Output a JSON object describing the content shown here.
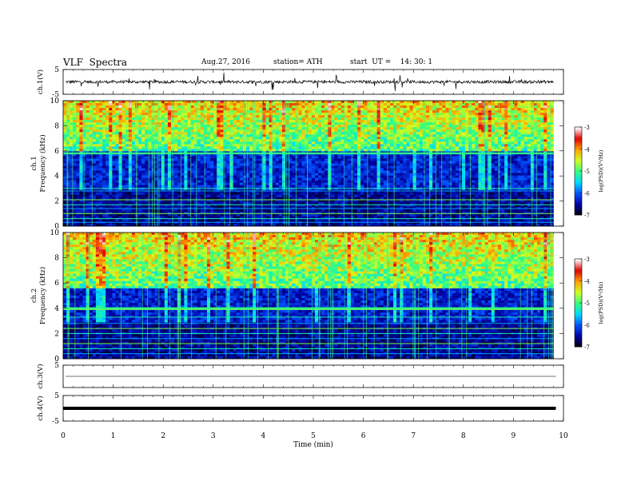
{
  "header": {
    "title": "VLF  Spectra",
    "date": "Aug.27, 2016",
    "station": "station= ATH",
    "start": "start  UT =    14: 30: 1"
  },
  "chart_data": [
    {
      "type": "line",
      "panel": "ch1-waveform",
      "ylabel": "ch.1(V)",
      "ylim": [
        -5,
        5
      ],
      "yticks": [
        5,
        -5
      ],
      "xlim": [
        0,
        10
      ],
      "baseline": 0,
      "noise_amplitude_approx": 1
    },
    {
      "type": "heatmap",
      "panel": "ch1-spectrogram",
      "ylabel_channel": "ch.1",
      "ylabel": "Frequency  (kHz)",
      "ylim": [
        0,
        10
      ],
      "yticks": [
        0,
        2,
        4,
        6,
        8,
        10
      ],
      "xlim": [
        0,
        10
      ],
      "data_end_min": 9.8,
      "colorbar": {
        "label": "log(PSD)(V²/Hz)",
        "range": [
          -7,
          -3
        ],
        "ticks": [
          -3,
          -4,
          -5,
          -6,
          -7
        ]
      },
      "features": {
        "strong_band_khz": 5.8,
        "low_power_band_khz": [
          2.8,
          5.6
        ],
        "high_power_band_khz": [
          6.0,
          10.0
        ],
        "narrowband_lines_khz": [
          0.3,
          0.6,
          1.0,
          1.4,
          1.7,
          2.1,
          2.8,
          3.0
        ]
      }
    },
    {
      "type": "heatmap",
      "panel": "ch2-spectrogram",
      "ylabel_channel": "ch.2",
      "ylabel": "Frequency  (kHz)",
      "ylim": [
        0,
        10
      ],
      "yticks": [
        0,
        2,
        4,
        6,
        8,
        10
      ],
      "xlim": [
        0,
        10
      ],
      "data_end_min": 9.8,
      "colorbar": {
        "label": "log(PSD)(V²/Hz)",
        "range": [
          -7,
          -3
        ],
        "ticks": [
          -3,
          -4,
          -5,
          -6,
          -7
        ]
      },
      "features": {
        "strong_band_khz": 4.0,
        "low_power_band_khz": [
          2.8,
          5.0
        ],
        "high_power_band_khz": [
          5.5,
          10.0
        ],
        "narrowband_lines_khz": [
          0.4,
          0.8,
          1.2,
          1.6,
          2.0,
          2.4,
          2.8,
          3.3,
          3.9
        ]
      }
    },
    {
      "type": "line",
      "panel": "ch3-waveform",
      "ylabel": "ch.3(V)",
      "ylim": [
        -5,
        5
      ],
      "yticks": [
        5
      ],
      "xlim": [
        0,
        10
      ],
      "baseline": 0
    },
    {
      "type": "line",
      "panel": "ch4-waveform",
      "ylabel": "ch.4(V)",
      "ylim": [
        -5,
        5
      ],
      "yticks": [
        5,
        -5
      ],
      "xlim": [
        0,
        10
      ],
      "baseline": 0,
      "thick": true
    }
  ],
  "xaxis": {
    "label": "Time  (min)",
    "ticks": [
      0,
      1,
      2,
      3,
      4,
      5,
      6,
      7,
      8,
      9,
      10
    ]
  },
  "colors": {
    "colormap": [
      "#000000",
      "#0000a0",
      "#0050ff",
      "#00d8ff",
      "#30ff80",
      "#d0ff20",
      "#ffa000",
      "#e00000",
      "#ffffff"
    ],
    "line": "#000000"
  }
}
